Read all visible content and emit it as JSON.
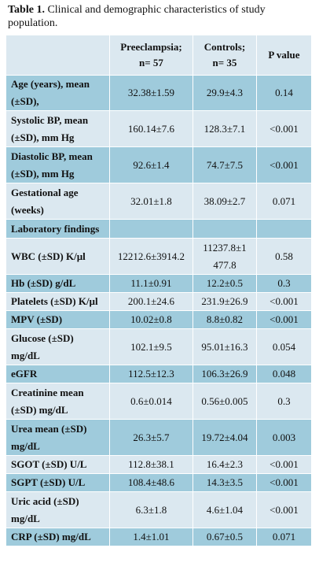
{
  "caption": {
    "label": "Table 1.",
    "text": " Clinical and demographic characteristics of study population."
  },
  "table": {
    "headers": [
      "",
      "Preeclampsia;\nn= 57",
      "Controls;\nn= 35",
      "P value"
    ],
    "rows": [
      {
        "label": "Age (years), mean (±SD),",
        "values": [
          "32.38±1.59",
          "29.9±4.3",
          "0.14"
        ],
        "tone": "d",
        "h": 40
      },
      {
        "label": "Systolic BP, mean (±SD), mm Hg",
        "values": [
          "160.14±7.6",
          "128.3±7.1",
          "<0.001"
        ],
        "tone": "l",
        "h": 46
      },
      {
        "label": "Diastolic BP, mean (±SD), mm Hg",
        "values": [
          "92.6±1.4",
          "74.7±7.5",
          "<0.001"
        ],
        "tone": "d",
        "h": 46
      },
      {
        "label": "Gestational age (weeks)",
        "values": [
          "32.01±1.8",
          "38.09±2.7",
          "0.071"
        ],
        "tone": "l",
        "h": 46
      },
      {
        "label": "Laboratory findings",
        "values": [
          "",
          "",
          ""
        ],
        "tone": "d",
        "h": 24
      },
      {
        "label": "WBC (±SD) K/µl",
        "values": [
          "12212.6±3914.2",
          "11237.8±1\n477.8",
          "0.58"
        ],
        "tone": "l",
        "h": 46
      },
      {
        "label": "Hb (±SD) g/dL",
        "values": [
          "11.1±0.91",
          "12.2±0.5",
          "0.3"
        ],
        "tone": "d",
        "h": 23
      },
      {
        "label": "Platelets (±SD) K/µl",
        "values": [
          "200.1±24.6",
          "231.9±26.9",
          "<0.001"
        ],
        "tone": "l",
        "h": 23
      },
      {
        "label": "MPV (±SD)",
        "values": [
          "10.02±0.8",
          "8.8±0.82",
          "<0.001"
        ],
        "tone": "d",
        "h": 23
      },
      {
        "label": "Glucose (±SD) mg/dL",
        "values": [
          "102.1±9.5",
          "95.01±16.3",
          "0.054"
        ],
        "tone": "l",
        "h": 46
      },
      {
        "label": "eGFR",
        "values": [
          "112.5±12.3",
          "106.3±26.9",
          "0.048"
        ],
        "tone": "d",
        "h": 23
      },
      {
        "label": "Creatinine mean (±SD) mg/dL",
        "values": [
          "0.6±0.014",
          "0.56±0.005",
          "0.3"
        ],
        "tone": "l",
        "h": 46
      },
      {
        "label": "Urea mean (±SD) mg/dL",
        "values": [
          "26.3±5.7",
          "19.72±4.04",
          "0.003"
        ],
        "tone": "d",
        "h": 46
      },
      {
        "label": "SGOT (±SD) U/L",
        "values": [
          "112.8±38.1",
          "16.4±2.3",
          "<0.001"
        ],
        "tone": "l",
        "h": 23
      },
      {
        "label": "SGPT (±SD) U/L",
        "values": [
          "108.4±48.6",
          "14.3±3.5",
          "<0.001"
        ],
        "tone": "d",
        "h": 23
      },
      {
        "label": "Uric acid (±SD) mg/dL",
        "values": [
          "6.3±1.8",
          "4.6±1.04",
          "<0.001"
        ],
        "tone": "l",
        "h": 46
      },
      {
        "label": "CRP (±SD) mg/dL",
        "values": [
          "1.4±1.01",
          "0.67±0.5",
          "0.071"
        ],
        "tone": "d",
        "h": 23
      }
    ]
  }
}
